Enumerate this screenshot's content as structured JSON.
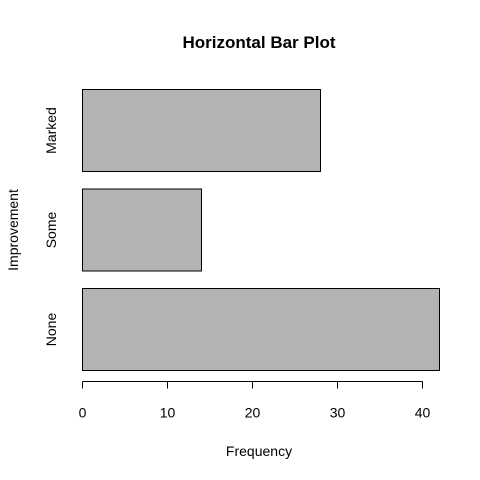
{
  "chart_data": {
    "type": "bar",
    "orientation": "horizontal",
    "title": "Horizontal Bar Plot",
    "xlabel": "Frequency",
    "ylabel": "Improvement",
    "categories": [
      "None",
      "Some",
      "Marked"
    ],
    "values": [
      42,
      14,
      28
    ],
    "xlim": [
      0,
      42
    ],
    "xticks": [
      0,
      10,
      20,
      30,
      40
    ],
    "bar_color": "#b3b3b3",
    "grid": false,
    "legend": "none"
  }
}
